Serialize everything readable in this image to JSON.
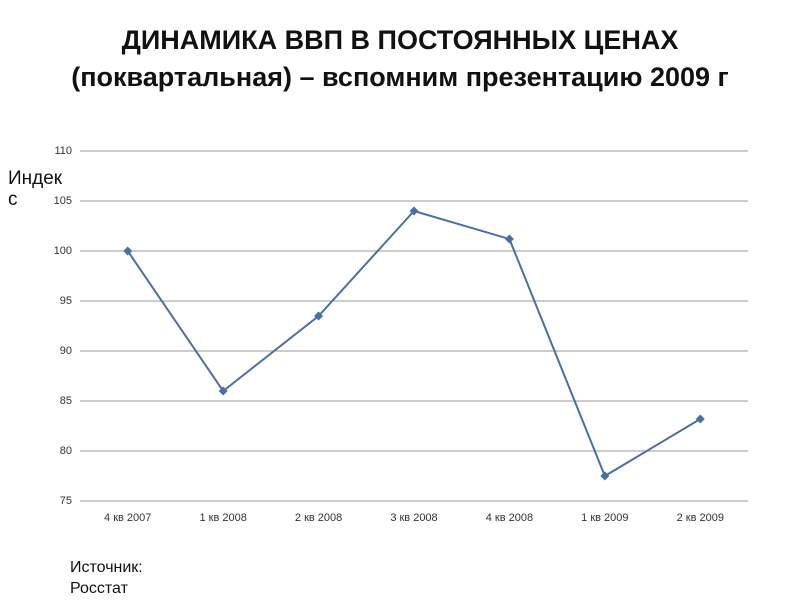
{
  "chart_data": {
    "type": "line",
    "title": "ДИНАМИКА ВВП В ПОСТОЯННЫХ ЦЕНАХ (поквартальная) – вспомним презентацию 2009 г",
    "y_label": "Индекс",
    "source": "Источник: Росстат",
    "categories": [
      "4 кв 2007",
      "1 кв 2008",
      "2 кв 2008",
      "3 кв 2008",
      "4 кв 2008",
      "1 кв 2009",
      "2 кв 2009"
    ],
    "values": [
      100,
      86,
      93.5,
      104,
      101.2,
      77.5,
      83.2
    ],
    "color": "#4a6fa5",
    "ylim": [
      75,
      110
    ],
    "yticks": [
      75,
      80,
      85,
      90,
      95,
      100,
      105,
      110
    ],
    "grid": true
  }
}
